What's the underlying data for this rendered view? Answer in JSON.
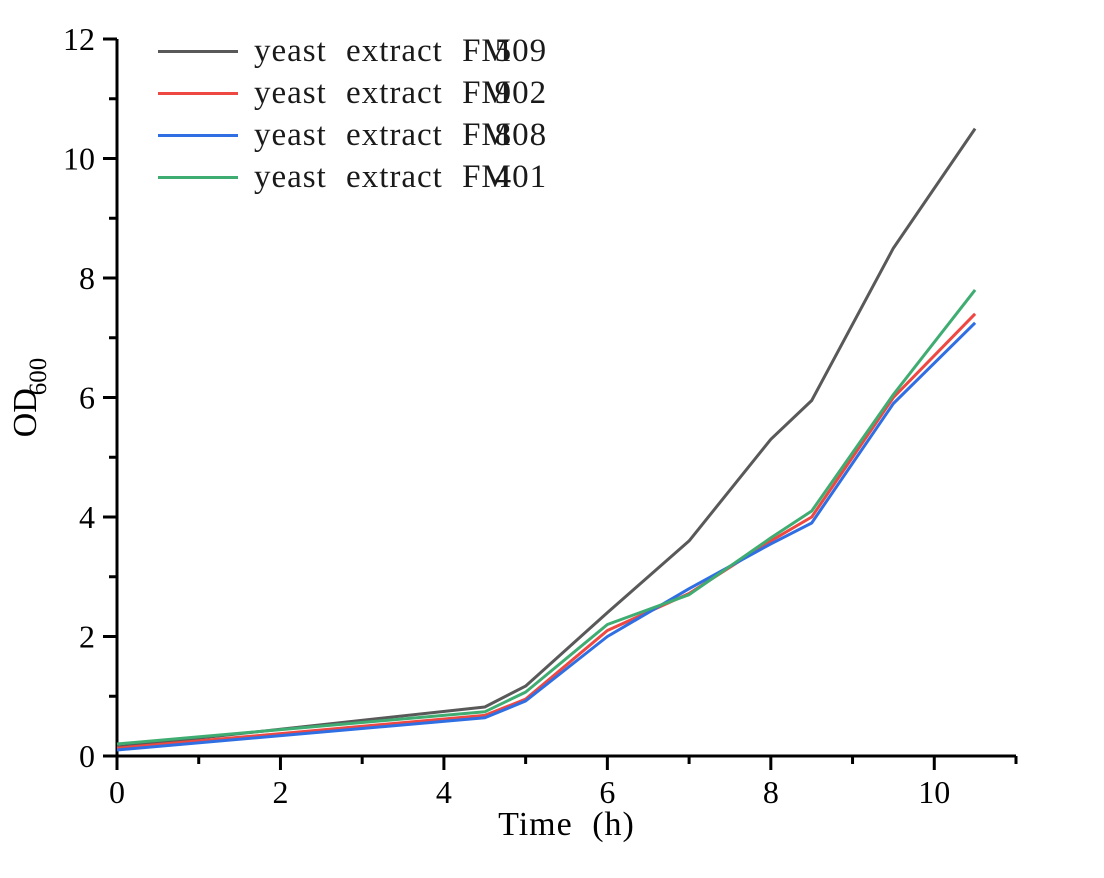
{
  "chart_data": {
    "type": "line",
    "title": "",
    "xlabel": "Time (h)",
    "ylabel": "OD600",
    "ylabel_main": "OD",
    "ylabel_sub": "600",
    "xlim": [
      0,
      11
    ],
    "ylim": [
      0,
      12
    ],
    "x_ticks_major": [
      0,
      2,
      4,
      6,
      8,
      10
    ],
    "x_ticks_minor": [
      1,
      3,
      5,
      7,
      9,
      11
    ],
    "y_ticks_major": [
      0,
      2,
      4,
      6,
      8,
      10,
      12
    ],
    "y_ticks_minor": [
      1,
      3,
      5,
      7,
      9,
      11
    ],
    "grid": false,
    "legend_position": "top-left",
    "axis_color": "#000000",
    "x": [
      0,
      4.5,
      5,
      6,
      7,
      8,
      8.5,
      9.5,
      10.5
    ],
    "series": [
      {
        "name": "yeast extract FM509",
        "color": "#595959",
        "values": [
          0.15,
          0.82,
          1.17,
          2.4,
          3.6,
          5.3,
          5.95,
          8.5,
          10.5
        ]
      },
      {
        "name": "yeast extract FM902",
        "color": "#EF4843",
        "values": [
          0.13,
          0.68,
          0.95,
          2.1,
          2.72,
          3.6,
          4.0,
          6.0,
          7.4
        ]
      },
      {
        "name": "yeast extract FM808",
        "color": "#2F6FE3",
        "values": [
          0.1,
          0.64,
          0.92,
          2.0,
          2.8,
          3.55,
          3.9,
          5.9,
          7.25
        ]
      },
      {
        "name": "yeast extract FM401",
        "color": "#3FAD72",
        "values": [
          0.2,
          0.74,
          1.07,
          2.2,
          2.7,
          3.65,
          4.1,
          6.05,
          7.8
        ]
      }
    ]
  }
}
